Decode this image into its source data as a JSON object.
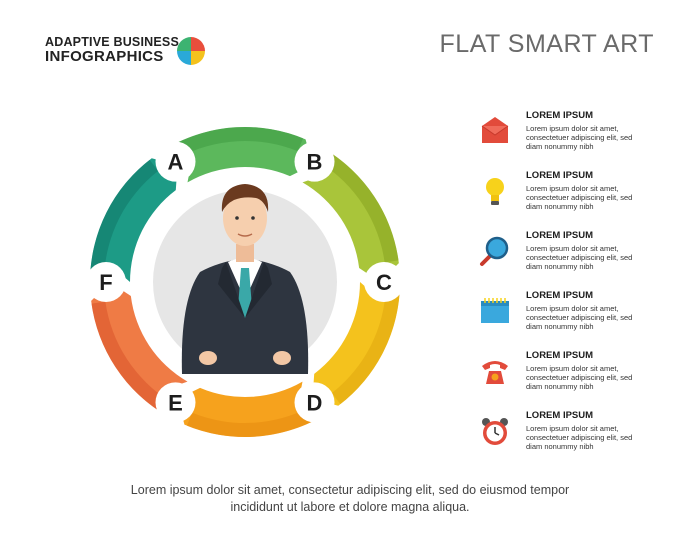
{
  "logo": {
    "line1": "ADAPTIVE BUSINESS",
    "line2": "INFOGRAPHICS",
    "pie_colors": [
      "#e94e3c",
      "#f4c21d",
      "#2aa9d8",
      "#3cb371"
    ]
  },
  "title": "FLAT SMART ART",
  "ring": {
    "segments": [
      {
        "letter": "A",
        "color": "#1d9b86",
        "dark": "#117767"
      },
      {
        "letter": "B",
        "color": "#5cb85c",
        "dark": "#3f9a42"
      },
      {
        "letter": "C",
        "color": "#a9c53a",
        "dark": "#86a31f"
      },
      {
        "letter": "D",
        "color": "#f4c21d",
        "dark": "#e0a80f"
      },
      {
        "letter": "E",
        "color": "#f6a21d",
        "dark": "#e58a0f"
      },
      {
        "letter": "F",
        "color": "#ef7b45",
        "dark": "#d9532a"
      }
    ]
  },
  "items": [
    {
      "icon": "envelope-icon",
      "title": "LOREM IPSUM",
      "desc": "Lorem ipsum dolor sit amet, consectetuer adipiscing elit, sed diam nonummy nibh"
    },
    {
      "icon": "lightbulb-icon",
      "title": "LOREM IPSUM",
      "desc": "Lorem ipsum dolor sit amet, consectetuer adipiscing elit, sed diam nonummy nibh"
    },
    {
      "icon": "magnifier-icon",
      "title": "LOREM IPSUM",
      "desc": "Lorem ipsum dolor sit amet, consectetuer adipiscing elit, sed diam nonummy nibh"
    },
    {
      "icon": "calendar-icon",
      "title": "LOREM IPSUM",
      "desc": "Lorem ipsum dolor sit amet, consectetuer adipiscing elit, sed diam nonummy nibh"
    },
    {
      "icon": "telephone-icon",
      "title": "LOREM IPSUM",
      "desc": "Lorem ipsum dolor sit amet, consectetuer adipiscing elit, sed diam nonummy nibh"
    },
    {
      "icon": "alarm-clock-icon",
      "title": "LOREM IPSUM",
      "desc": "Lorem ipsum dolor sit amet, consectetuer adipiscing elit, sed diam nonummy nibh"
    }
  ],
  "footer": {
    "line1": "Lorem ipsum dolor sit amet, consectetur adipiscing elit, sed do eiusmod tempor",
    "line2": "incididunt ut labore et dolore magna aliqua."
  }
}
